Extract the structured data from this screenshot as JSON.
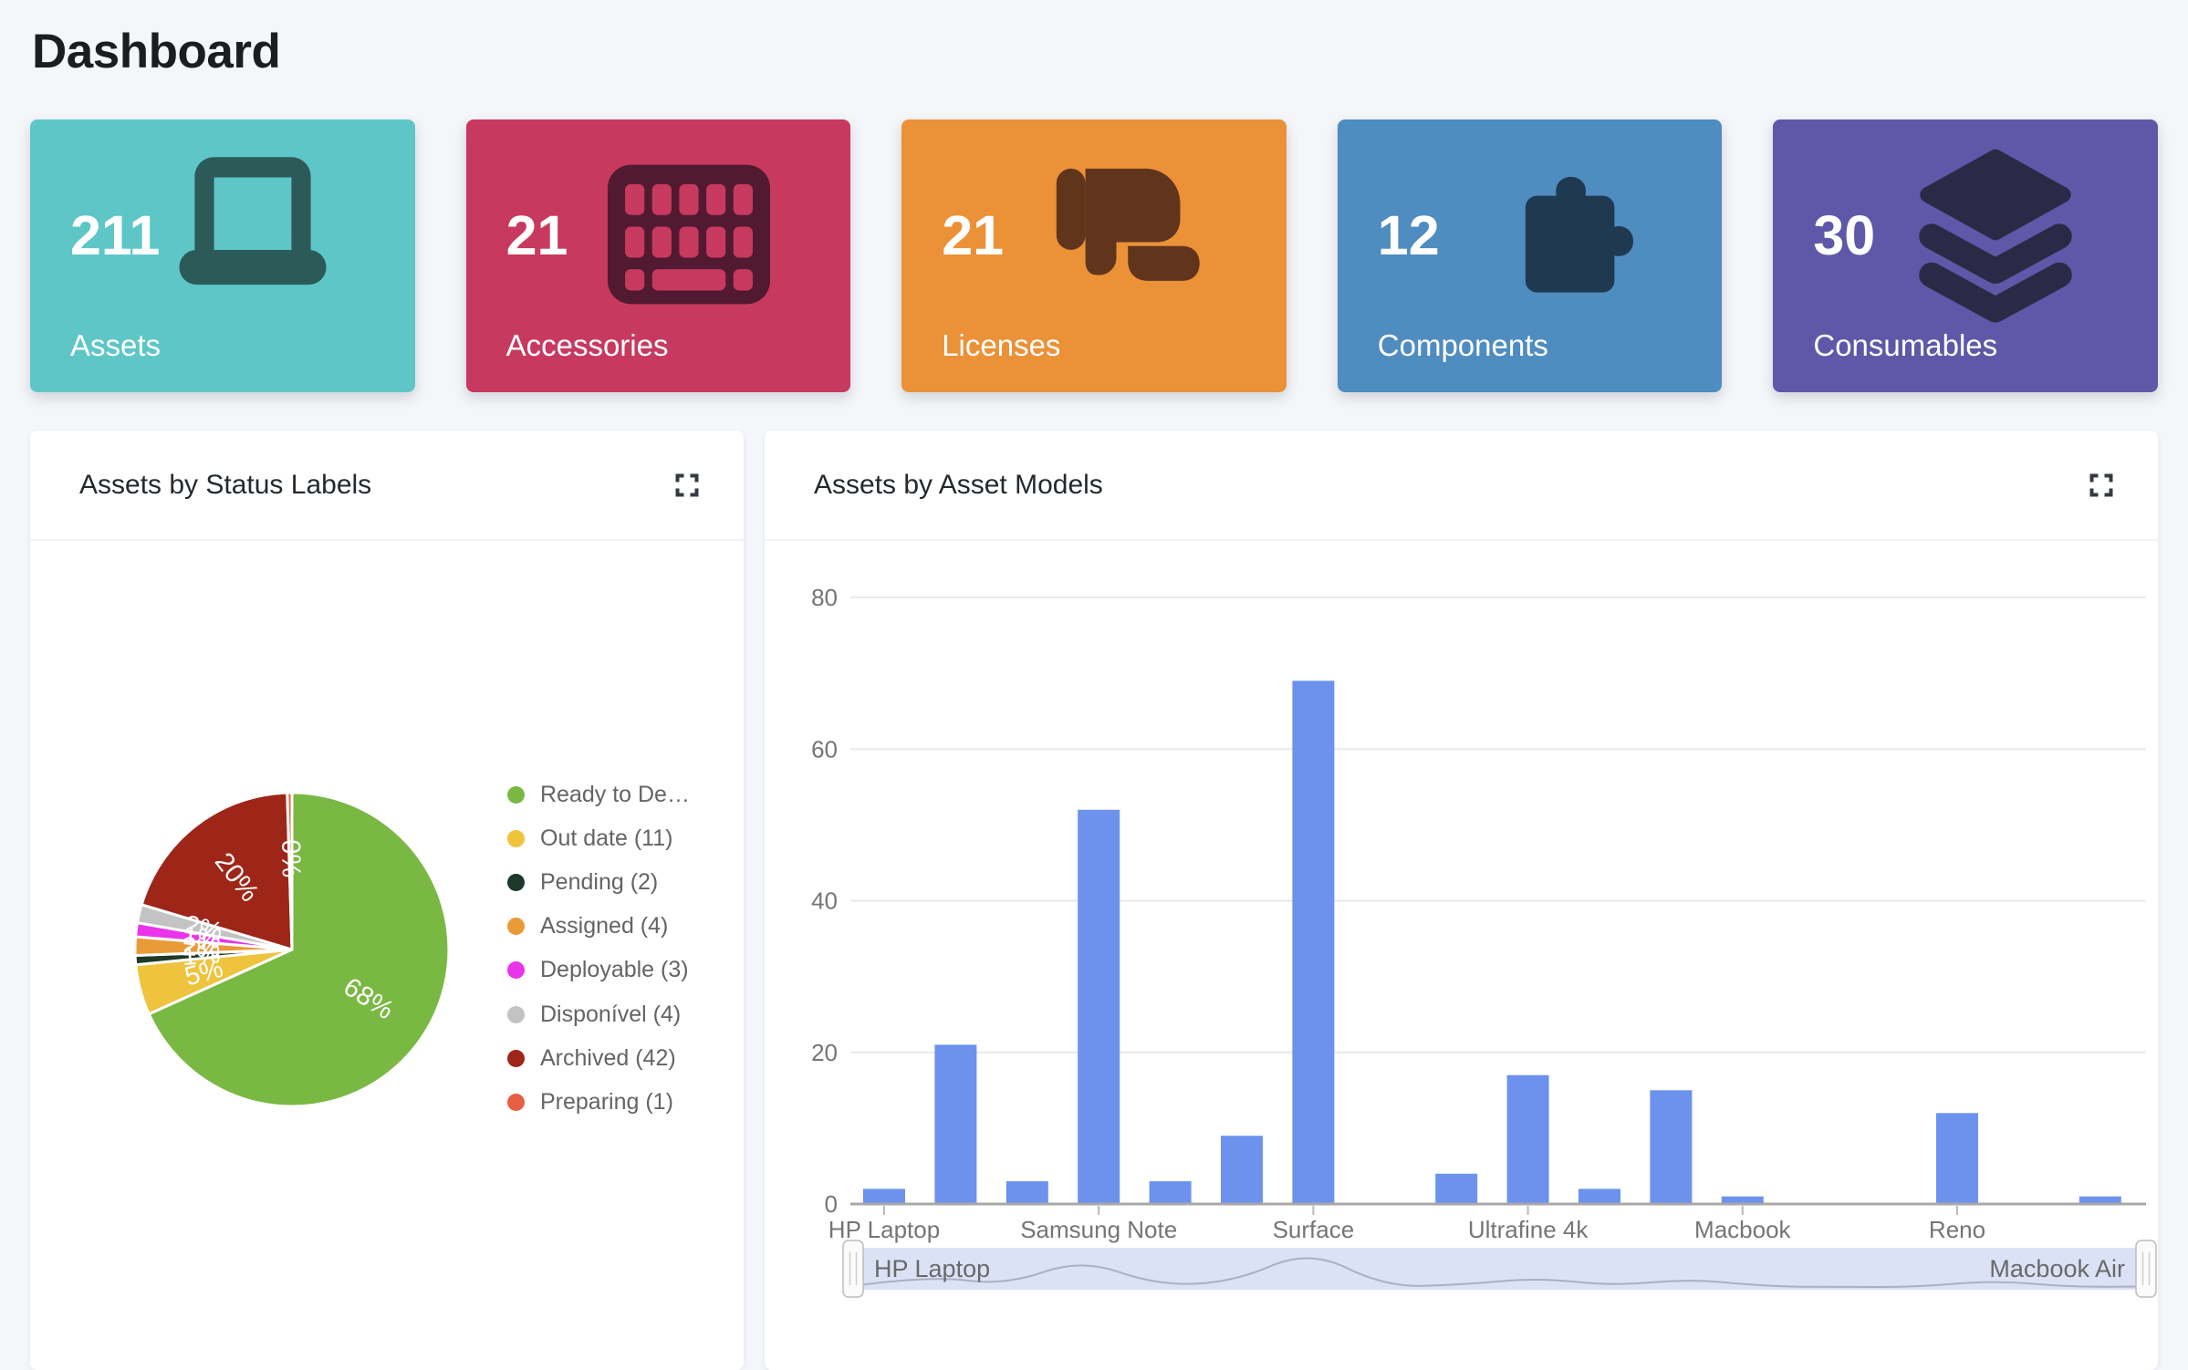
{
  "page": {
    "title": "Dashboard"
  },
  "colors": {
    "page_bg": "#f4f6f9",
    "bar": "#6c92ee",
    "axis_text": "#757575",
    "grid": "#e9e9e9",
    "baseline": "#a8a8a8",
    "legend_text": "#646464",
    "slider_track": "#dbe2f6",
    "slider_wave": "#aab0c2",
    "slider_label": "#696969"
  },
  "cards": [
    {
      "count": "211",
      "label": "Assets",
      "icon": "laptop-icon",
      "bg": "#5ec6c7",
      "icon_color": "#2b5a59"
    },
    {
      "count": "21",
      "label": "Accessories",
      "icon": "keyboard-icon",
      "bg": "#c8395f",
      "icon_color": "#521a30"
    },
    {
      "count": "21",
      "label": "Licenses",
      "icon": "scroll-icon",
      "bg": "#eb9138",
      "icon_color": "#61351b"
    },
    {
      "count": "12",
      "label": "Components",
      "icon": "puzzle-piece-icon",
      "bg": "#4f8cc0",
      "icon_color": "#1f3951"
    },
    {
      "count": "30",
      "label": "Consumables",
      "icon": "layers-icon",
      "bg": "#5f58a8",
      "icon_color": "#2a2a47"
    }
  ],
  "panels": {
    "status": {
      "title": "Assets by Status Labels"
    },
    "models": {
      "title": "Assets by Asset Models"
    }
  },
  "chart_data": [
    {
      "type": "pie",
      "title": "Assets by Status Labels",
      "legend_position": "right",
      "slices": [
        {
          "legend_label": "Ready to De…",
          "percent_label": "68%",
          "percent": 68.25,
          "color": "#7ab844"
        },
        {
          "legend_label": "Out date (11)",
          "percent_label": "5%",
          "percent": 5.2,
          "color": "#eec33e",
          "count": 11
        },
        {
          "legend_label": "Pending (2)",
          "percent_label": "1%",
          "percent": 0.95,
          "color": "#1d3929",
          "count": 2
        },
        {
          "legend_label": "Assigned (4)",
          "percent_label": "2%",
          "percent": 1.9,
          "color": "#e89b36",
          "count": 4
        },
        {
          "legend_label": "Deployable (3)",
          "percent_label": "1%",
          "percent": 1.42,
          "color": "#ea34ea",
          "count": 3
        },
        {
          "legend_label": "Disponível (4)",
          "percent_label": "2%",
          "percent": 1.9,
          "color": "#c3c3c3",
          "count": 4
        },
        {
          "legend_label": "Archived (42)",
          "percent_label": "20%",
          "percent": 19.9,
          "color": "#9e2619",
          "count": 42
        },
        {
          "legend_label": "Preparing (1)",
          "percent_label": "0%",
          "percent": 0.48,
          "color": "#e65f45",
          "count": 1
        }
      ]
    },
    {
      "type": "bar",
      "title": "Assets by Asset Models",
      "ylim": [
        0,
        80
      ],
      "y_ticks": [
        0,
        20,
        40,
        60,
        80
      ],
      "grid": true,
      "values": [
        2,
        21,
        3,
        52,
        3,
        9,
        69,
        0,
        4,
        17,
        2,
        15,
        1,
        0,
        0,
        12,
        0,
        1
      ],
      "x_tick_labels": [
        {
          "label": "HP Laptop",
          "index": 0
        },
        {
          "label": "Samsung Note",
          "index": 3
        },
        {
          "label": "Surface",
          "index": 6
        },
        {
          "label": "Ultrafine 4k",
          "index": 9
        },
        {
          "label": "Macbook",
          "index": 12
        },
        {
          "label": "Reno",
          "index": 15
        }
      ],
      "range_slider": {
        "start_label": "HP Laptop",
        "end_label": "Macbook Air"
      }
    }
  ]
}
